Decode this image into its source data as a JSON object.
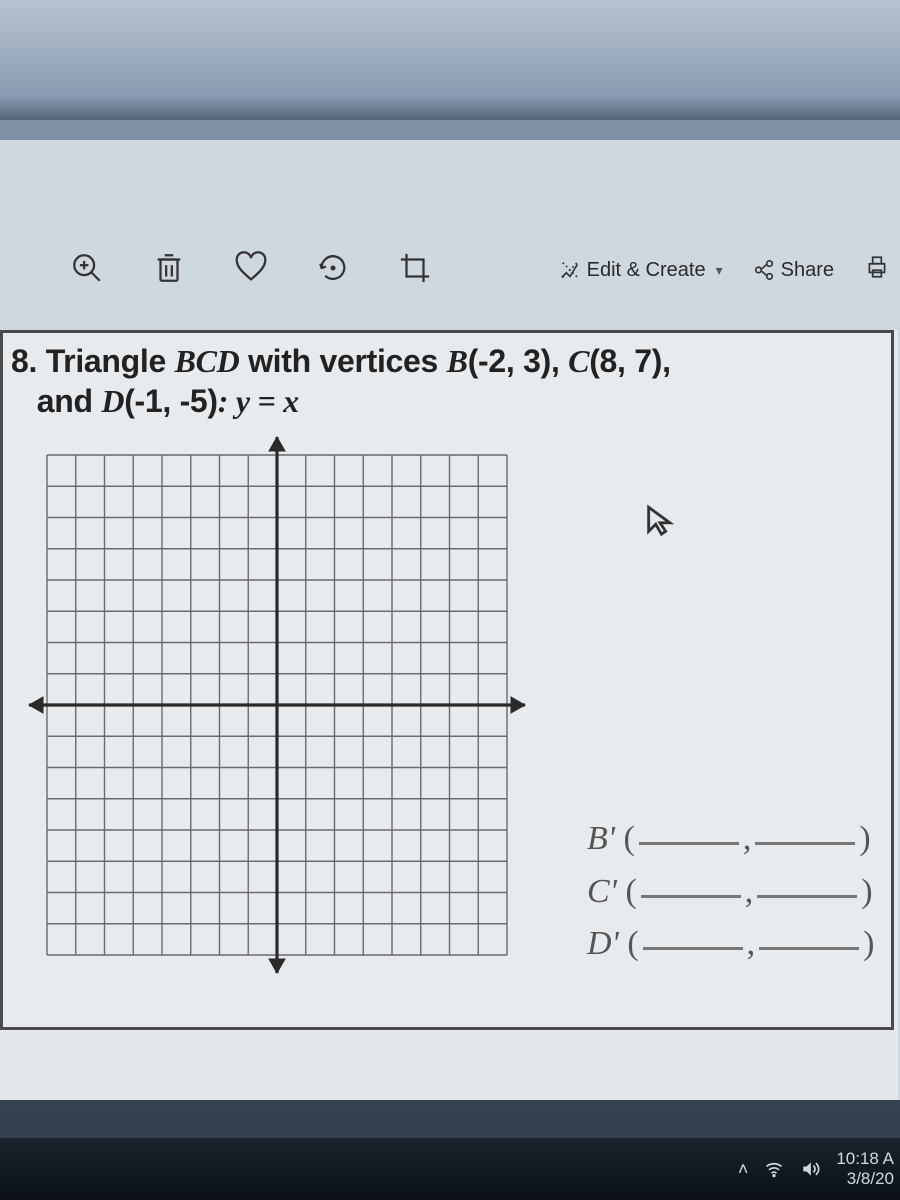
{
  "window": {
    "toolbar": {
      "edit_create_label": "Edit & Create",
      "share_label": "Share"
    }
  },
  "problem": {
    "number": "8.",
    "text_prefix": "Triangle ",
    "triangle_name": "BCD",
    "text_mid": " with vertices ",
    "B_label": "B",
    "B_coords": "(-2, 3)",
    "C_label": "C",
    "C_coords": "(8, 7)",
    "and": "and ",
    "D_label": "D",
    "D_coords": "(-1, -5)",
    "colon_eq": ":  y = x"
  },
  "grid": {
    "xlim": [
      -8,
      8
    ],
    "ylim": [
      -8,
      8
    ],
    "tick_step": 1,
    "grid_color": "#6b6b6b",
    "axis_color": "#2a2a2a",
    "background": "#e8ebee"
  },
  "answers": {
    "B": "B'",
    "C": "C'",
    "D": "D'"
  },
  "taskbar": {
    "time": "10:18 A",
    "date": "3/8/20"
  }
}
